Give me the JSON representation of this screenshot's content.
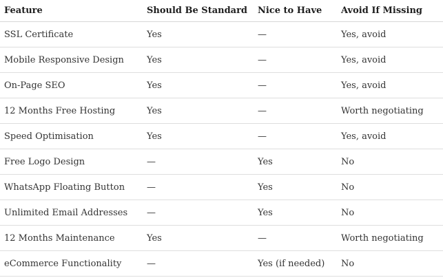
{
  "table": {
    "headers": [
      "Feature",
      "Should Be Standard",
      "Nice to Have",
      "Avoid If Missing"
    ],
    "rows": [
      [
        "SSL Certificate",
        "Yes",
        "—",
        "Yes, avoid"
      ],
      [
        "Mobile Responsive Design",
        "Yes",
        "—",
        "Yes, avoid"
      ],
      [
        "On-Page SEO",
        "Yes",
        "—",
        "Yes, avoid"
      ],
      [
        "12 Months Free Hosting",
        "Yes",
        "—",
        "Worth negotiating"
      ],
      [
        "Speed Optimisation",
        "Yes",
        "—",
        "Yes, avoid"
      ],
      [
        "Free Logo Design",
        "—",
        "Yes",
        "No"
      ],
      [
        "WhatsApp Floating Button",
        "—",
        "Yes",
        "No"
      ],
      [
        "Unlimited Email Addresses",
        "—",
        "Yes",
        "No"
      ],
      [
        "12 Months Maintenance",
        "Yes",
        "—",
        "Worth negotiating"
      ],
      [
        "eCommerce Functionality",
        "—",
        "Yes (if needed)",
        "No"
      ]
    ]
  }
}
